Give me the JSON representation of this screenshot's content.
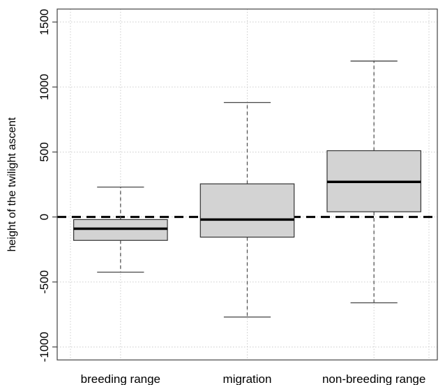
{
  "chart_data": {
    "type": "box",
    "title": "",
    "xlabel": "",
    "ylabel": "height of the twilight ascent",
    "ylim": [
      -1100,
      1600
    ],
    "yticks": [
      -1000,
      -500,
      0,
      500,
      1000,
      1500
    ],
    "ytick_labels": [
      "-1000",
      "-500",
      "0",
      "500",
      "1000",
      "1500"
    ],
    "categories": [
      "breeding range",
      "migration",
      "non-breeding range"
    ],
    "boxes": [
      {
        "category": "breeding range",
        "whisker_low": -425,
        "q1": -180,
        "median": -90,
        "q3": -20,
        "whisker_high": 230
      },
      {
        "category": "migration",
        "whisker_low": -770,
        "q1": -155,
        "median": -20,
        "q3": 255,
        "whisker_high": 880
      },
      {
        "category": "non-breeding range",
        "whisker_low": -660,
        "q1": 40,
        "median": 270,
        "q3": 510,
        "whisker_high": 1200
      }
    ],
    "reference_line": {
      "y": 0,
      "style": "dashed"
    },
    "grid": true,
    "box_fill": "#d3d3d3",
    "grid_color": "#cccccc",
    "line_color": "#000000"
  }
}
